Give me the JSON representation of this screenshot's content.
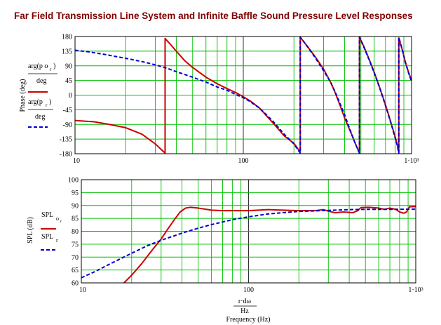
{
  "title": "Far Field Transmission Line System and Infinite Baffle Sound Pressure Level Responses",
  "colors": {
    "title": "#800000",
    "grid": "#00c000",
    "series_red": "#cc0000",
    "series_blue": "#0000cc",
    "frame": "#000000"
  },
  "chart_data": [
    {
      "type": "line",
      "xscale": "log",
      "xlim": [
        10,
        1000
      ],
      "ylim": [
        -180,
        180
      ],
      "grid": true,
      "ylabel": "Phase (deg)",
      "xlabel": "",
      "xtick_labels": [
        "10",
        "100",
        "1·10³"
      ],
      "ytick_labels": [
        "180",
        "135",
        "90",
        "45",
        "0",
        "-45",
        "-90",
        "-135",
        "-180"
      ],
      "legend": {
        "placement": "left",
        "entries": [
          {
            "num": "arg(p o",
            "sub": "r",
            "close": ")",
            "den": "deg",
            "style": "solid"
          },
          {
            "num": "arg(p",
            "sub": "r",
            "close": ")",
            "den": "deg",
            "style": "dashed"
          }
        ]
      },
      "series": [
        {
          "style": "solid",
          "color": "#cc0000",
          "points": [
            [
              10,
              -78
            ],
            [
              13,
              -82
            ],
            [
              16,
              -90
            ],
            [
              20,
              -100
            ],
            [
              25,
              -120
            ],
            [
              30,
              -150
            ],
            [
              33,
              -170
            ],
            [
              34.3,
              -178
            ],
            [
              34.3,
              174
            ],
            [
              36,
              162
            ],
            [
              40,
              135
            ],
            [
              45,
              105
            ],
            [
              50,
              85
            ],
            [
              60,
              55
            ],
            [
              70,
              35
            ],
            [
              80,
              20
            ],
            [
              90,
              8
            ],
            [
              100,
              -5
            ],
            [
              110,
              -18
            ],
            [
              125,
              -40
            ],
            [
              150,
              -85
            ],
            [
              175,
              -125
            ],
            [
              200,
              -148
            ],
            [
              218,
              -175
            ],
            [
              218,
              178
            ],
            [
              240,
              150
            ],
            [
              270,
              115
            ],
            [
              300,
              80
            ],
            [
              330,
              40
            ],
            [
              350,
              10
            ],
            [
              375,
              -30
            ],
            [
              400,
              -70
            ],
            [
              430,
              -108
            ],
            [
              460,
              -145
            ],
            [
              490,
              -178
            ],
            [
              490,
              178
            ],
            [
              520,
              150
            ],
            [
              560,
              110
            ],
            [
              600,
              70
            ],
            [
              640,
              30
            ],
            [
              680,
              -10
            ],
            [
              720,
              -50
            ],
            [
              760,
              -90
            ],
            [
              790,
              -120
            ],
            [
              820,
              -150
            ],
            [
              840,
              -175
            ],
            [
              840,
              175
            ],
            [
              880,
              140
            ],
            [
              920,
              100
            ],
            [
              960,
              70
            ],
            [
              1000,
              45
            ]
          ]
        },
        {
          "style": "dashed",
          "color": "#0000cc",
          "points": [
            [
              10,
              138
            ],
            [
              12,
              133
            ],
            [
              15,
              125
            ],
            [
              20,
              113
            ],
            [
              25,
              103
            ],
            [
              30,
              93
            ],
            [
              35,
              83
            ],
            [
              40,
              72
            ],
            [
              50,
              55
            ],
            [
              60,
              40
            ],
            [
              70,
              25
            ],
            [
              80,
              15
            ],
            [
              90,
              2
            ],
            [
              100,
              -8
            ],
            [
              110,
              -20
            ],
            [
              125,
              -40
            ],
            [
              150,
              -80
            ],
            [
              175,
              -120
            ],
            [
              200,
              -150
            ],
            [
              218,
              -178
            ],
            [
              218,
              178
            ],
            [
              240,
              150
            ],
            [
              270,
              112
            ],
            [
              300,
              75
            ],
            [
              330,
              40
            ],
            [
              350,
              12
            ],
            [
              375,
              -25
            ],
            [
              400,
              -60
            ],
            [
              430,
              -105
            ],
            [
              460,
              -145
            ],
            [
              490,
              -178
            ],
            [
              490,
              178
            ],
            [
              520,
              148
            ],
            [
              560,
              108
            ],
            [
              600,
              68
            ],
            [
              640,
              28
            ],
            [
              680,
              -12
            ],
            [
              720,
              -52
            ],
            [
              760,
              -92
            ],
            [
              790,
              -122
            ],
            [
              820,
              -152
            ],
            [
              840,
              -178
            ],
            [
              840,
              178
            ],
            [
              880,
              140
            ],
            [
              920,
              100
            ],
            [
              960,
              68
            ],
            [
              1000,
              42
            ]
          ]
        }
      ]
    },
    {
      "type": "line",
      "xscale": "log",
      "xlim": [
        10,
        1000
      ],
      "ylim": [
        60,
        100
      ],
      "grid": true,
      "ylabel": "SPL (dB)",
      "xlabel_num": "r·dω",
      "xlabel_den": "Hz",
      "xlabel": "Frequency (Hz)",
      "xtick_labels": [
        "10",
        "100",
        "1·10³"
      ],
      "ytick_labels": [
        "100",
        "95",
        "90",
        "85",
        "80",
        "75",
        "70",
        "65",
        "60"
      ],
      "legend": {
        "placement": "left",
        "entries": [
          {
            "name": "SPL",
            "sub": "o",
            "sub2": "r",
            "style": "solid"
          },
          {
            "name": "SPL",
            "sub": "r",
            "style": "dashed"
          }
        ]
      },
      "series": [
        {
          "style": "solid",
          "color": "#cc0000",
          "points": [
            [
              18,
              60
            ],
            [
              20,
              63
            ],
            [
              23,
              67.5
            ],
            [
              26,
              72
            ],
            [
              30,
              77
            ],
            [
              33,
              81
            ],
            [
              36,
              84.5
            ],
            [
              39,
              87.5
            ],
            [
              42,
              89
            ],
            [
              45,
              89.3
            ],
            [
              50,
              89
            ],
            [
              60,
              88.2
            ],
            [
              70,
              88
            ],
            [
              80,
              88
            ],
            [
              100,
              88
            ],
            [
              130,
              88.4
            ],
            [
              160,
              88.2
            ],
            [
              200,
              88
            ],
            [
              250,
              88
            ],
            [
              280,
              88.4
            ],
            [
              300,
              87.8
            ],
            [
              330,
              87.2
            ],
            [
              370,
              87.5
            ],
            [
              420,
              87.2
            ],
            [
              450,
              88
            ],
            [
              470,
              89.2
            ],
            [
              520,
              89.3
            ],
            [
              600,
              89
            ],
            [
              650,
              88.5
            ],
            [
              700,
              89
            ],
            [
              760,
              88.5
            ],
            [
              800,
              87.5
            ],
            [
              850,
              87
            ],
            [
              880,
              87.5
            ],
            [
              920,
              89.5
            ],
            [
              1000,
              89.6
            ]
          ]
        },
        {
          "style": "dashed",
          "color": "#0000cc",
          "points": [
            [
              10,
              62
            ],
            [
              12,
              64.3
            ],
            [
              15,
              67.5
            ],
            [
              20,
              71.5
            ],
            [
              25,
              74.5
            ],
            [
              30,
              76.5
            ],
            [
              40,
              79.3
            ],
            [
              50,
              81.2
            ],
            [
              60,
              82.6
            ],
            [
              70,
              83.6
            ],
            [
              80,
              84.5
            ],
            [
              100,
              85.6
            ],
            [
              130,
              86.7
            ],
            [
              160,
              87.2
            ],
            [
              200,
              87.7
            ],
            [
              300,
              88.1
            ],
            [
              400,
              88.4
            ],
            [
              500,
              88.5
            ],
            [
              700,
              88.5
            ],
            [
              1000,
              88.6
            ]
          ]
        }
      ]
    }
  ]
}
